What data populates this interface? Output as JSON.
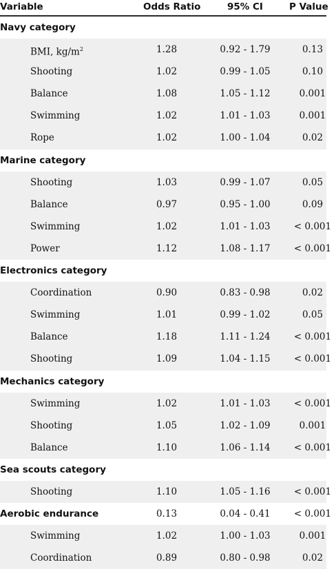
{
  "header": {
    "variable": "Variable",
    "odds_ratio": "Odds Ratio",
    "ci": "95% CI",
    "p_value": "P Value"
  },
  "groups": [
    {
      "title": "Navy category",
      "rows": [
        {
          "variable": "BMI, kg/m",
          "sup": "2",
          "or": "1.28",
          "ci": "0.92 - 1.79",
          "p": "0.13"
        },
        {
          "variable": "Shooting",
          "or": "1.02",
          "ci": "0.99 - 1.05",
          "p": "0.10"
        },
        {
          "variable": "Balance",
          "or": "1.08",
          "ci": "1.05 - 1.12",
          "p": "0.001"
        },
        {
          "variable": "Swimming",
          "or": "1.02",
          "ci": "1.01 - 1.03",
          "p": "0.001"
        },
        {
          "variable": "Rope",
          "or": "1.02",
          "ci": "1.00 - 1.04",
          "p": "0.02"
        }
      ]
    },
    {
      "title": "Marine category",
      "rows": [
        {
          "variable": "Shooting",
          "or": "1.03",
          "ci": "0.99 - 1.07",
          "p": "0.05"
        },
        {
          "variable": "Balance",
          "or": "0.97",
          "ci": "0.95 - 1.00",
          "p": "0.09"
        },
        {
          "variable": "Swimming",
          "or": "1.02",
          "ci": "1.01 - 1.03",
          "p": "< 0.001"
        },
        {
          "variable": "Power",
          "or": "1.12",
          "ci": "1.08 - 1.17",
          "p": "< 0.001"
        }
      ]
    },
    {
      "title": "Electronics category",
      "rows": [
        {
          "variable": "Coordination",
          "or": "0.90",
          "ci": "0.83 - 0.98",
          "p": "0.02"
        },
        {
          "variable": "Swimming",
          "or": "1.01",
          "ci": "0.99 - 1.02",
          "p": "0.05"
        },
        {
          "variable": "Balance",
          "or": "1.18",
          "ci": "1.11 - 1.24",
          "p": "< 0.001"
        },
        {
          "variable": "Shooting",
          "or": "1.09",
          "ci": "1.04 - 1.15",
          "p": "< 0.001"
        }
      ]
    },
    {
      "title": "Mechanics category",
      "rows": [
        {
          "variable": "Swimming",
          "or": "1.02",
          "ci": "1.01 - 1.03",
          "p": "< 0.001"
        },
        {
          "variable": "Shooting",
          "or": "1.05",
          "ci": "1.02 - 1.09",
          "p": "0.001"
        },
        {
          "variable": "Balance",
          "or": "1.10",
          "ci": "1.06 - 1.14",
          "p": "< 0.001"
        }
      ]
    },
    {
      "title": "Sea scouts category",
      "rows": [
        {
          "variable": "Shooting",
          "or": "1.10",
          "ci": "1.05 - 1.16",
          "p": "< 0.001"
        }
      ]
    },
    {
      "title": "Aerobic endurance",
      "or": "0.13",
      "ci": "0.04 - 0.41",
      "p": "< 0.001",
      "rows": [
        {
          "variable": "Swimming",
          "or": "1.02",
          "ci": "1.00 - 1.03",
          "p": "0.001"
        },
        {
          "variable": "Coordination",
          "or": "0.89",
          "ci": "0.80 - 0.98",
          "p": "0.02"
        }
      ]
    }
  ]
}
